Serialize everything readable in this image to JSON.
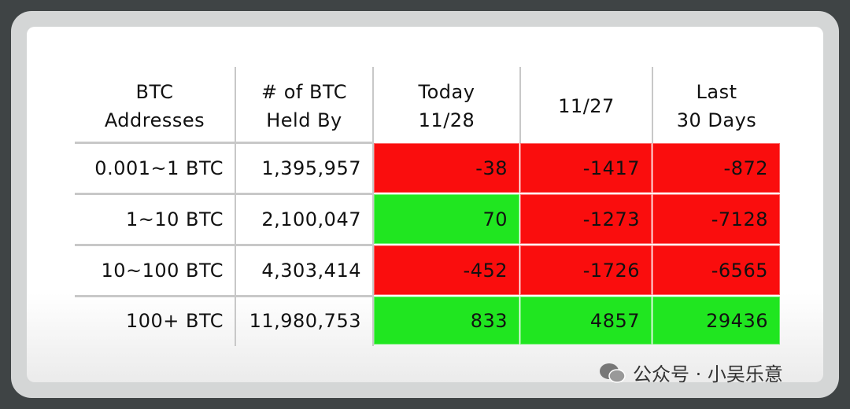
{
  "table": {
    "header": [
      [
        "BTC",
        "Addresses"
      ],
      [
        "# of BTC",
        "Held By"
      ],
      [
        "Today",
        "11/28"
      ],
      [
        "11/27"
      ],
      [
        "Last",
        "30 Days"
      ]
    ],
    "rows": [
      [
        "0.001~1 BTC",
        "1,395,957",
        -38,
        -1417,
        -872
      ],
      [
        "1~10 BTC",
        "2,100,047",
        70,
        -1273,
        -7128
      ],
      [
        "10~100 BTC",
        "4,303,414",
        -452,
        -1726,
        -6565
      ],
      [
        "100+ BTC",
        "11,980,753",
        833,
        4857,
        29436
      ]
    ],
    "positive_color": "#20e620",
    "negative_color": "#fa0d0d"
  },
  "watermark": "公众号 · 小吴乐意"
}
